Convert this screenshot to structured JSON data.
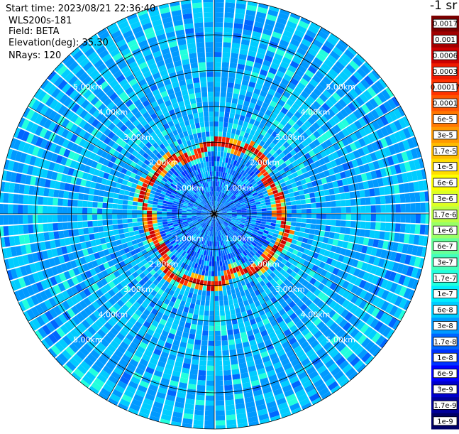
{
  "header": {
    "start_time": "Start time: 2023/08/21 22:36:40",
    "instrument": "WLS200s-181",
    "field": "Field: BETA",
    "elevation": "Elevation(deg): 35.30",
    "nrays": "NRays: 120"
  },
  "colorbar": {
    "unit": "-1 sr",
    "labels": [
      "0.0017",
      "0.001",
      "0.0006",
      "0.0003",
      "0.00017",
      "0.0001",
      "6e-5",
      "3e-5",
      "1.7e-5",
      "1e-5",
      "6e-6",
      "3e-6",
      "1.7e-6",
      "1e-6",
      "6e-7",
      "3e-7",
      "1.7e-7",
      "1e-7",
      "6e-8",
      "3e-8",
      "1.7e-8",
      "1e-8",
      "6e-9",
      "3e-9",
      "1.7e-9",
      "1e-9"
    ],
    "colors": [
      "#7a0000",
      "#a00000",
      "#cc0000",
      "#ee1a00",
      "#ff3300",
      "#ff5500",
      "#ff7700",
      "#ff9900",
      "#ffbb00",
      "#ffdd00",
      "#ffff00",
      "#ddff22",
      "#bbff44",
      "#99ff66",
      "#66ff99",
      "#44ffbb",
      "#22ffdd",
      "#00eeff",
      "#00ccff",
      "#0099ff",
      "#0066ff",
      "#0033ff",
      "#0000ff",
      "#0000cc",
      "#000099",
      "#000066"
    ]
  },
  "chart_data": {
    "type": "heatmap",
    "projection": "polar",
    "field": "BETA",
    "elevation_deg": 35.3,
    "n_rays": 120,
    "range_rings_km": [
      1,
      2,
      3,
      4,
      5
    ],
    "ring_labels": [
      "1.00km",
      "2.00km",
      "3.00km",
      "4.00km",
      "5.00km"
    ],
    "spokes_deg": [
      0,
      30,
      60,
      90,
      120,
      150,
      180,
      210,
      240,
      270,
      300,
      330
    ],
    "max_range_km": 7,
    "features": {
      "background_beta": "3e-8",
      "near_field_beta": "1.7e-8",
      "ring_feature_range_km": 2.3,
      "ring_feature_beta": "0.0003"
    }
  }
}
